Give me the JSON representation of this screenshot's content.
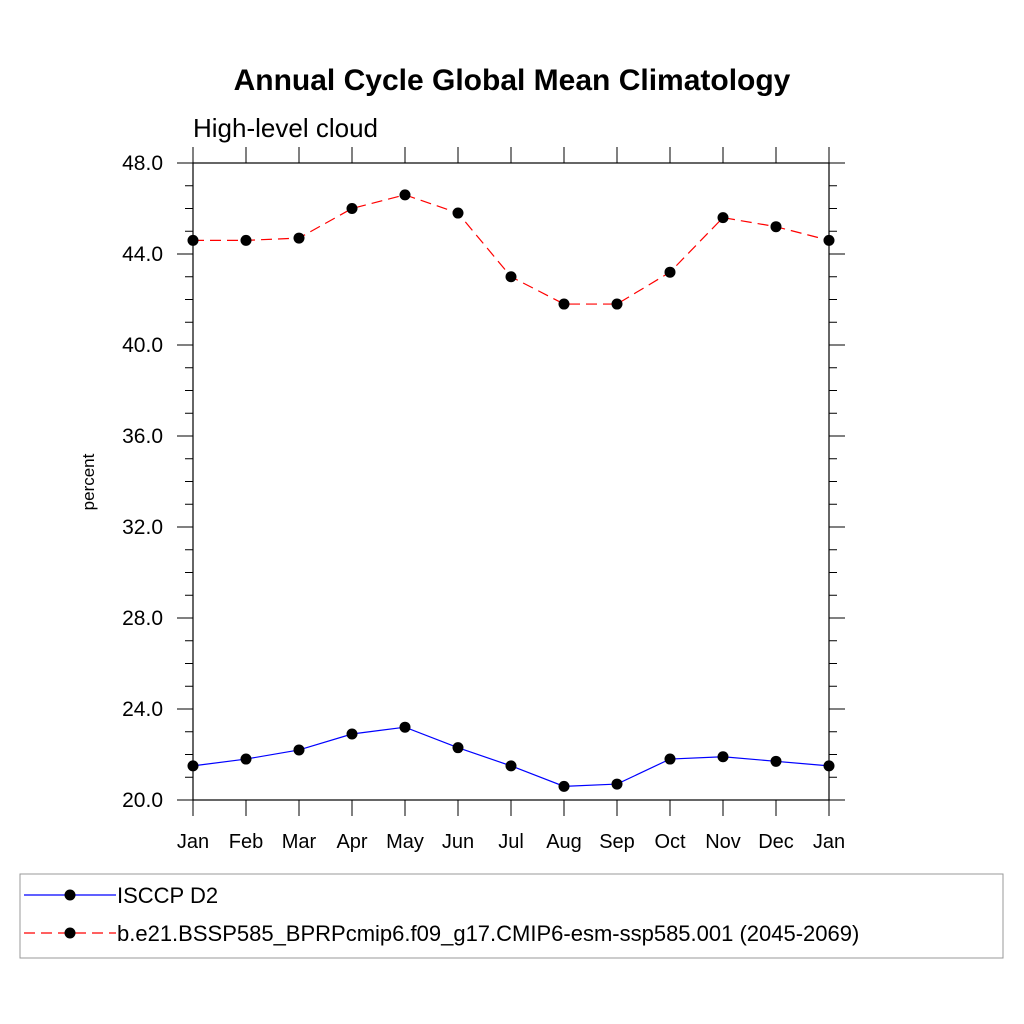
{
  "chart_data": {
    "type": "line",
    "title": "Annual Cycle Global Mean Climatology",
    "subtitle": "High-level cloud",
    "xlabel": "",
    "ylabel": "percent",
    "categories": [
      "Jan",
      "Feb",
      "Mar",
      "Apr",
      "May",
      "Jun",
      "Jul",
      "Aug",
      "Sep",
      "Oct",
      "Nov",
      "Dec",
      "Jan"
    ],
    "ylim": [
      20.0,
      48.0
    ],
    "yticks": [
      "20.0",
      "24.0",
      "28.0",
      "32.0",
      "36.0",
      "40.0",
      "44.0",
      "48.0"
    ],
    "grid": false,
    "legend_position": "bottom",
    "series": [
      {
        "name": "ISCCP D2",
        "color": "#0000ff",
        "line_style": "solid",
        "marker": "circle",
        "values": [
          21.5,
          21.8,
          22.2,
          22.9,
          23.2,
          22.3,
          21.5,
          20.6,
          20.7,
          21.8,
          21.9,
          21.7,
          21.5
        ]
      },
      {
        "name": "b.e21.BSSP585_BPRPcmip6.f09_g17.CMIP6-esm-ssp585.001 (2045-2069)",
        "color": "#ff0000",
        "line_style": "dashed",
        "marker": "circle",
        "values": [
          44.6,
          44.6,
          44.7,
          46.0,
          46.6,
          45.8,
          43.0,
          41.8,
          41.8,
          43.2,
          45.6,
          45.2,
          44.6
        ]
      }
    ]
  }
}
